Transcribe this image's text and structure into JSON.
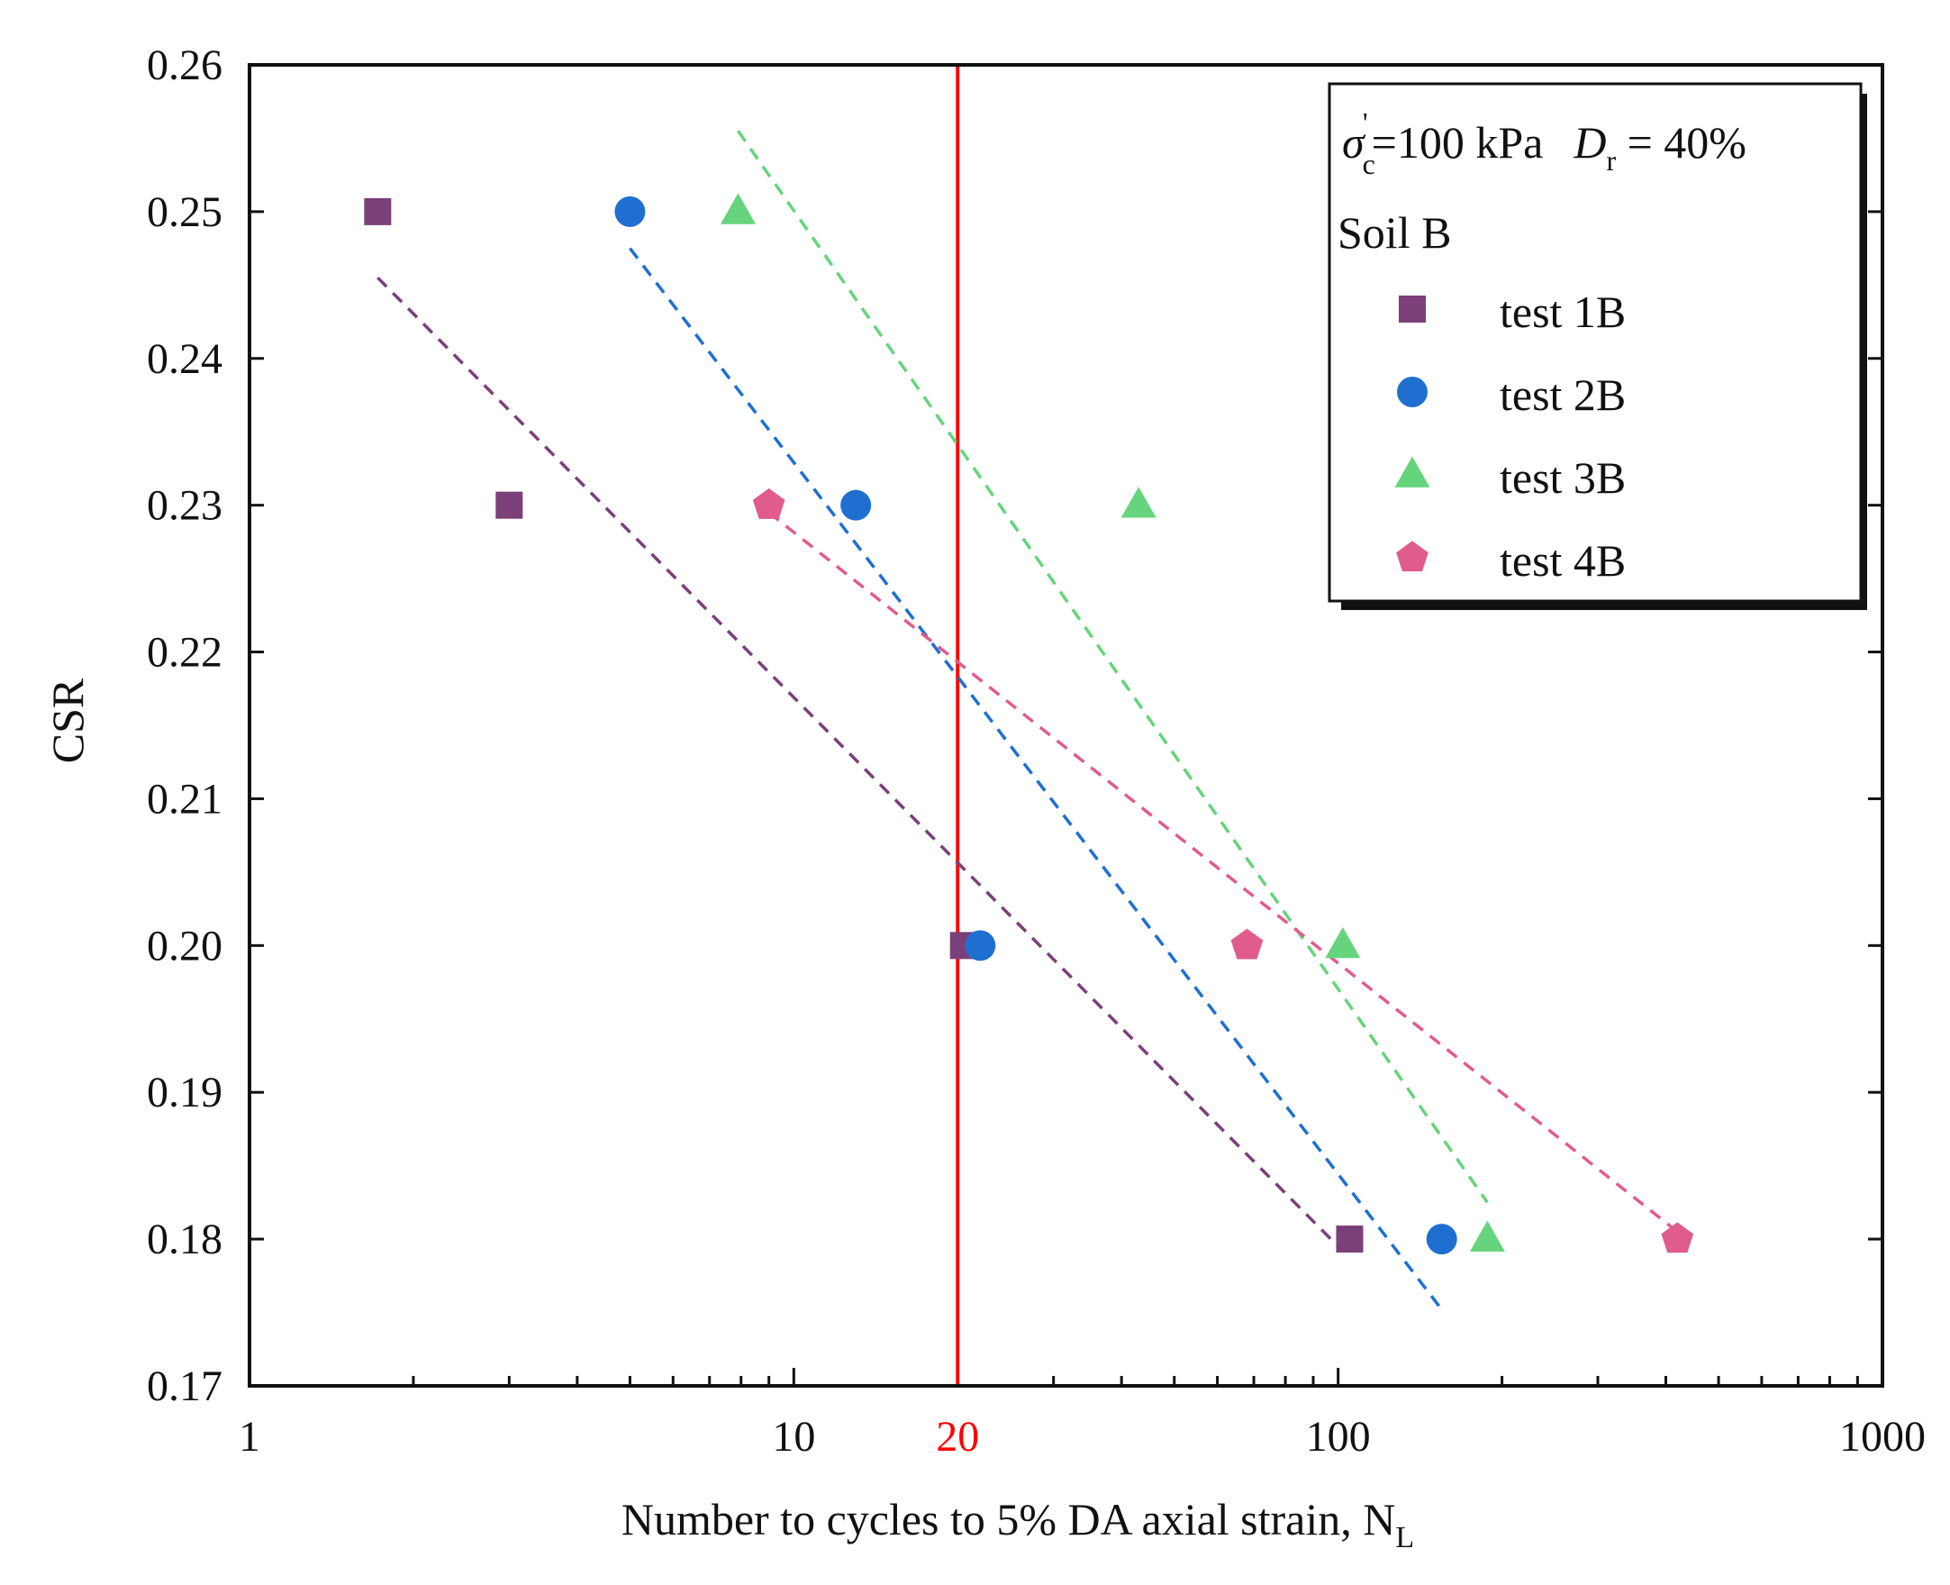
{
  "chart_data": {
    "type": "scatter",
    "title": "",
    "xlabel": "Number to cycles to 5% DA axial strain, N",
    "xlabel_subscript": "L",
    "ylabel": "CSR",
    "xscale": "log",
    "xlim": [
      1,
      1000
    ],
    "ylim": [
      0.17,
      0.26
    ],
    "x_ticks": [
      {
        "value": 1,
        "label": "1"
      },
      {
        "value": 10,
        "label": "10"
      },
      {
        "value": 100,
        "label": "100"
      },
      {
        "value": 1000,
        "label": "1000"
      }
    ],
    "y_ticks": [
      {
        "value": 0.17,
        "label": "0.17"
      },
      {
        "value": 0.18,
        "label": "0.18"
      },
      {
        "value": 0.19,
        "label": "0.19"
      },
      {
        "value": 0.2,
        "label": "0.20"
      },
      {
        "value": 0.21,
        "label": "0.21"
      },
      {
        "value": 0.22,
        "label": "0.22"
      },
      {
        "value": 0.23,
        "label": "0.23"
      },
      {
        "value": 0.24,
        "label": "0.24"
      },
      {
        "value": 0.25,
        "label": "0.25"
      },
      {
        "value": 0.26,
        "label": "0.26"
      }
    ],
    "reference_line": {
      "x": 20,
      "label": "20",
      "color": "#ff0000"
    },
    "legend": {
      "position": "top-right",
      "condition_sigma": "σ",
      "condition_sigma_sub": "c",
      "condition_sigma_sup": "'",
      "condition_pressure": "=100 kPa",
      "condition_dr": "D",
      "condition_dr_sub": "r",
      "condition_dr_value": " = 40%",
      "soil": "Soil B"
    },
    "series": [
      {
        "name": "test 1B",
        "marker": "square",
        "color": "#7b3f7a",
        "points": [
          {
            "x": 1.72,
            "y": 0.25
          },
          {
            "x": 3.0,
            "y": 0.23
          },
          {
            "x": 20.5,
            "y": 0.2
          },
          {
            "x": 105,
            "y": 0.18
          }
        ],
        "trend": [
          [
            1.72,
            0.2455
          ],
          [
            100,
            0.1795
          ]
        ]
      },
      {
        "name": "test 2B",
        "marker": "circle",
        "color": "#1f6fd1",
        "points": [
          {
            "x": 5.0,
            "y": 0.25
          },
          {
            "x": 13.0,
            "y": 0.23
          },
          {
            "x": 22.0,
            "y": 0.2
          },
          {
            "x": 155,
            "y": 0.18
          }
        ],
        "trend": [
          [
            5.0,
            0.2475
          ],
          [
            155,
            0.1752
          ]
        ]
      },
      {
        "name": "test 3B",
        "marker": "triangle",
        "color": "#66d47c",
        "points": [
          {
            "x": 7.9,
            "y": 0.25
          },
          {
            "x": 43.0,
            "y": 0.23
          },
          {
            "x": 102,
            "y": 0.2
          },
          {
            "x": 188,
            "y": 0.18
          }
        ],
        "trend": [
          [
            7.9,
            0.2555
          ],
          [
            188,
            0.1825
          ]
        ]
      },
      {
        "name": "test 4B",
        "marker": "pentagon",
        "color": "#e05c8c",
        "points": [
          {
            "x": 9.0,
            "y": 0.23
          },
          {
            "x": 68.0,
            "y": 0.2
          },
          {
            "x": 420,
            "y": 0.18
          }
        ],
        "trend": [
          [
            9.0,
            0.2295
          ],
          [
            420,
            0.1805
          ]
        ]
      }
    ]
  }
}
